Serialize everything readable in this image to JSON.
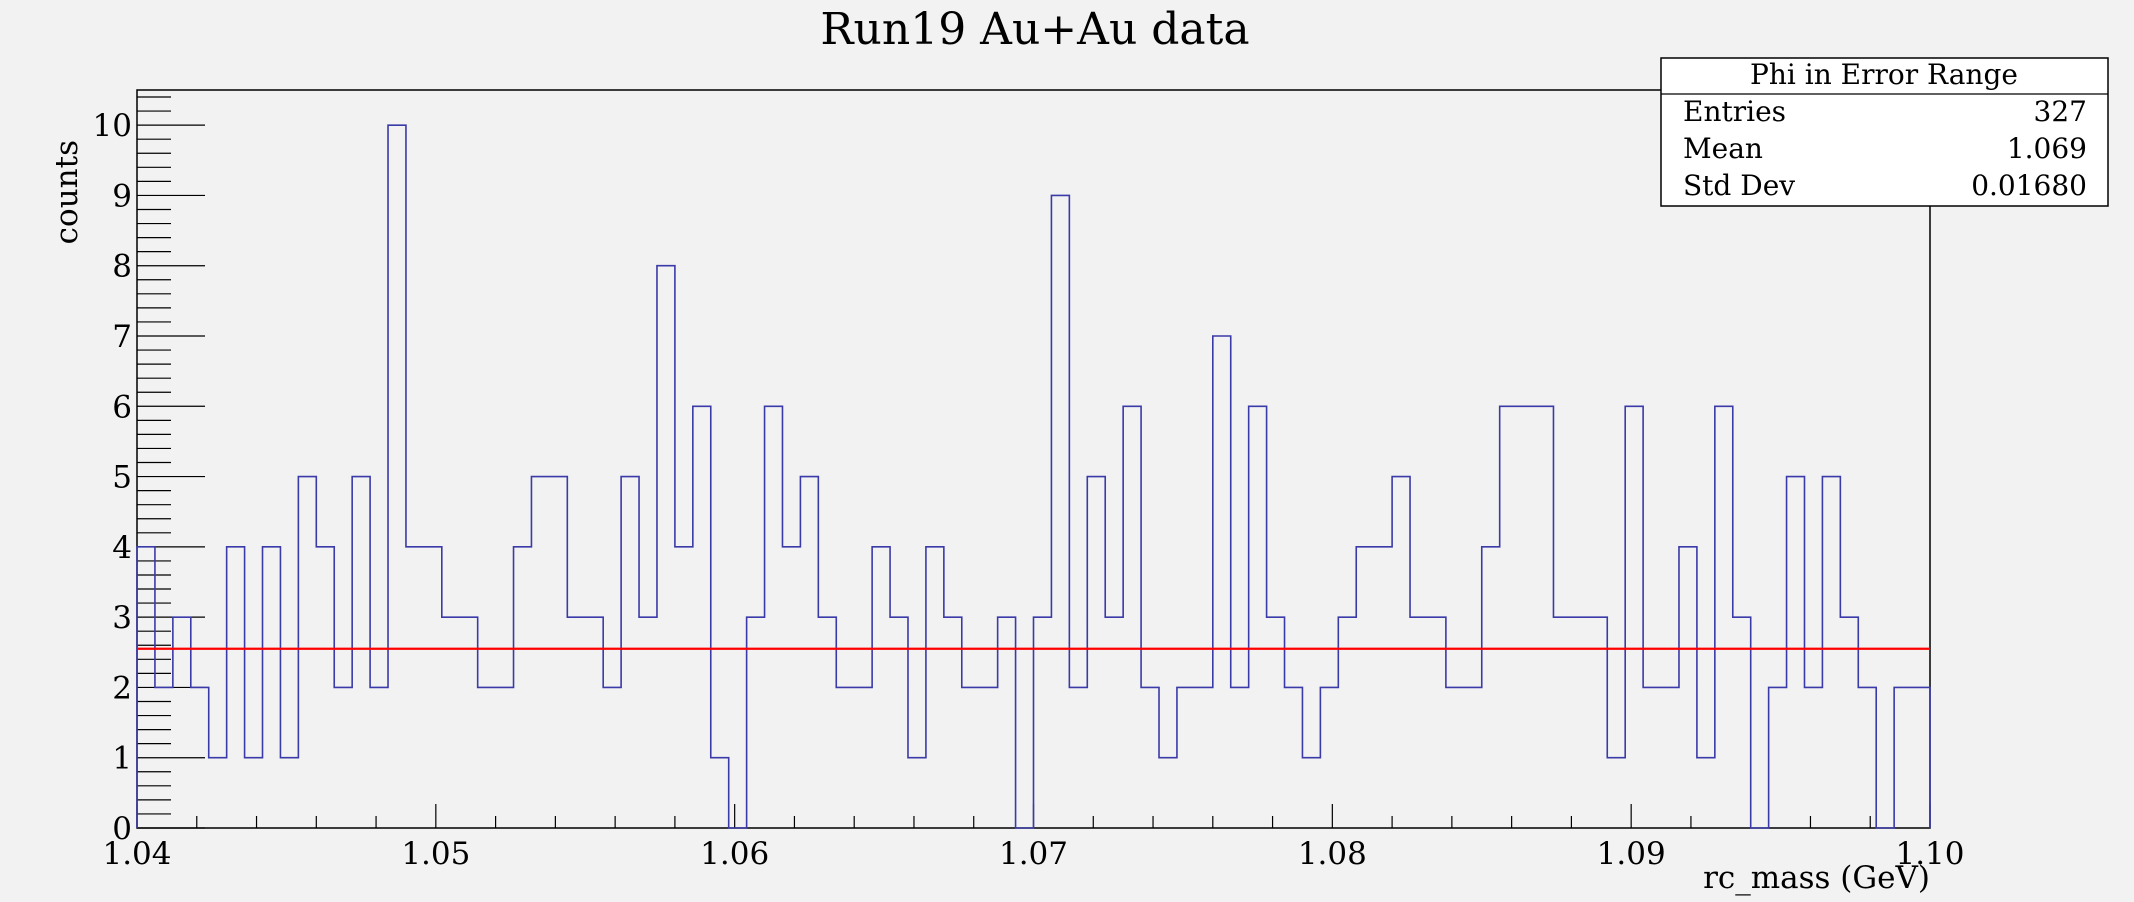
{
  "chart_data": {
    "type": "histogram",
    "title": "Run19 Au+Au data",
    "xlabel": "rc_mass (GeV)",
    "ylabel": "counts",
    "xlim": [
      1.04,
      1.1
    ],
    "ylim": [
      0,
      10.5
    ],
    "x_ticks": [
      "1.04",
      "1.05",
      "1.06",
      "1.07",
      "1.08",
      "1.09",
      "1.10"
    ],
    "x_tick_values": [
      1.04,
      1.05,
      1.06,
      1.07,
      1.08,
      1.09,
      1.1
    ],
    "y_ticks": [
      "0",
      "1",
      "2",
      "3",
      "4",
      "5",
      "6",
      "7",
      "8",
      "9",
      "10"
    ],
    "y_tick_values": [
      0,
      1,
      2,
      3,
      4,
      5,
      6,
      7,
      8,
      9,
      10
    ],
    "bin_low": 1.04,
    "bin_width": 0.0006,
    "counts": [
      4,
      2,
      3,
      2,
      1,
      4,
      1,
      4,
      1,
      5,
      4,
      2,
      5,
      2,
      10,
      4,
      4,
      3,
      3,
      2,
      2,
      4,
      5,
      5,
      3,
      3,
      2,
      5,
      3,
      8,
      4,
      6,
      1,
      0,
      3,
      6,
      4,
      5,
      3,
      2,
      2,
      4,
      3,
      1,
      4,
      3,
      2,
      2,
      3,
      0,
      3,
      9,
      2,
      5,
      3,
      6,
      2,
      1,
      2,
      2,
      7,
      2,
      6,
      3,
      2,
      1,
      2,
      3,
      4,
      4,
      5,
      3,
      3,
      2,
      2,
      4,
      6,
      6,
      6,
      3,
      3,
      3,
      1,
      6,
      2,
      2,
      4,
      1,
      6,
      3,
      0,
      2,
      5,
      2,
      5,
      3,
      2,
      0,
      2,
      2
    ],
    "fit_line": {
      "y": 2.55,
      "color": "#ff0000"
    },
    "histogram_color": "#3a3aa8",
    "grid": false,
    "stats_box": {
      "title": "Phi in Error Range",
      "placement": "top-right",
      "rows": [
        {
          "label": "Entries",
          "value": "327"
        },
        {
          "label": "Mean",
          "value": "1.069"
        },
        {
          "label": "Std Dev",
          "value": "0.01680"
        }
      ]
    }
  }
}
